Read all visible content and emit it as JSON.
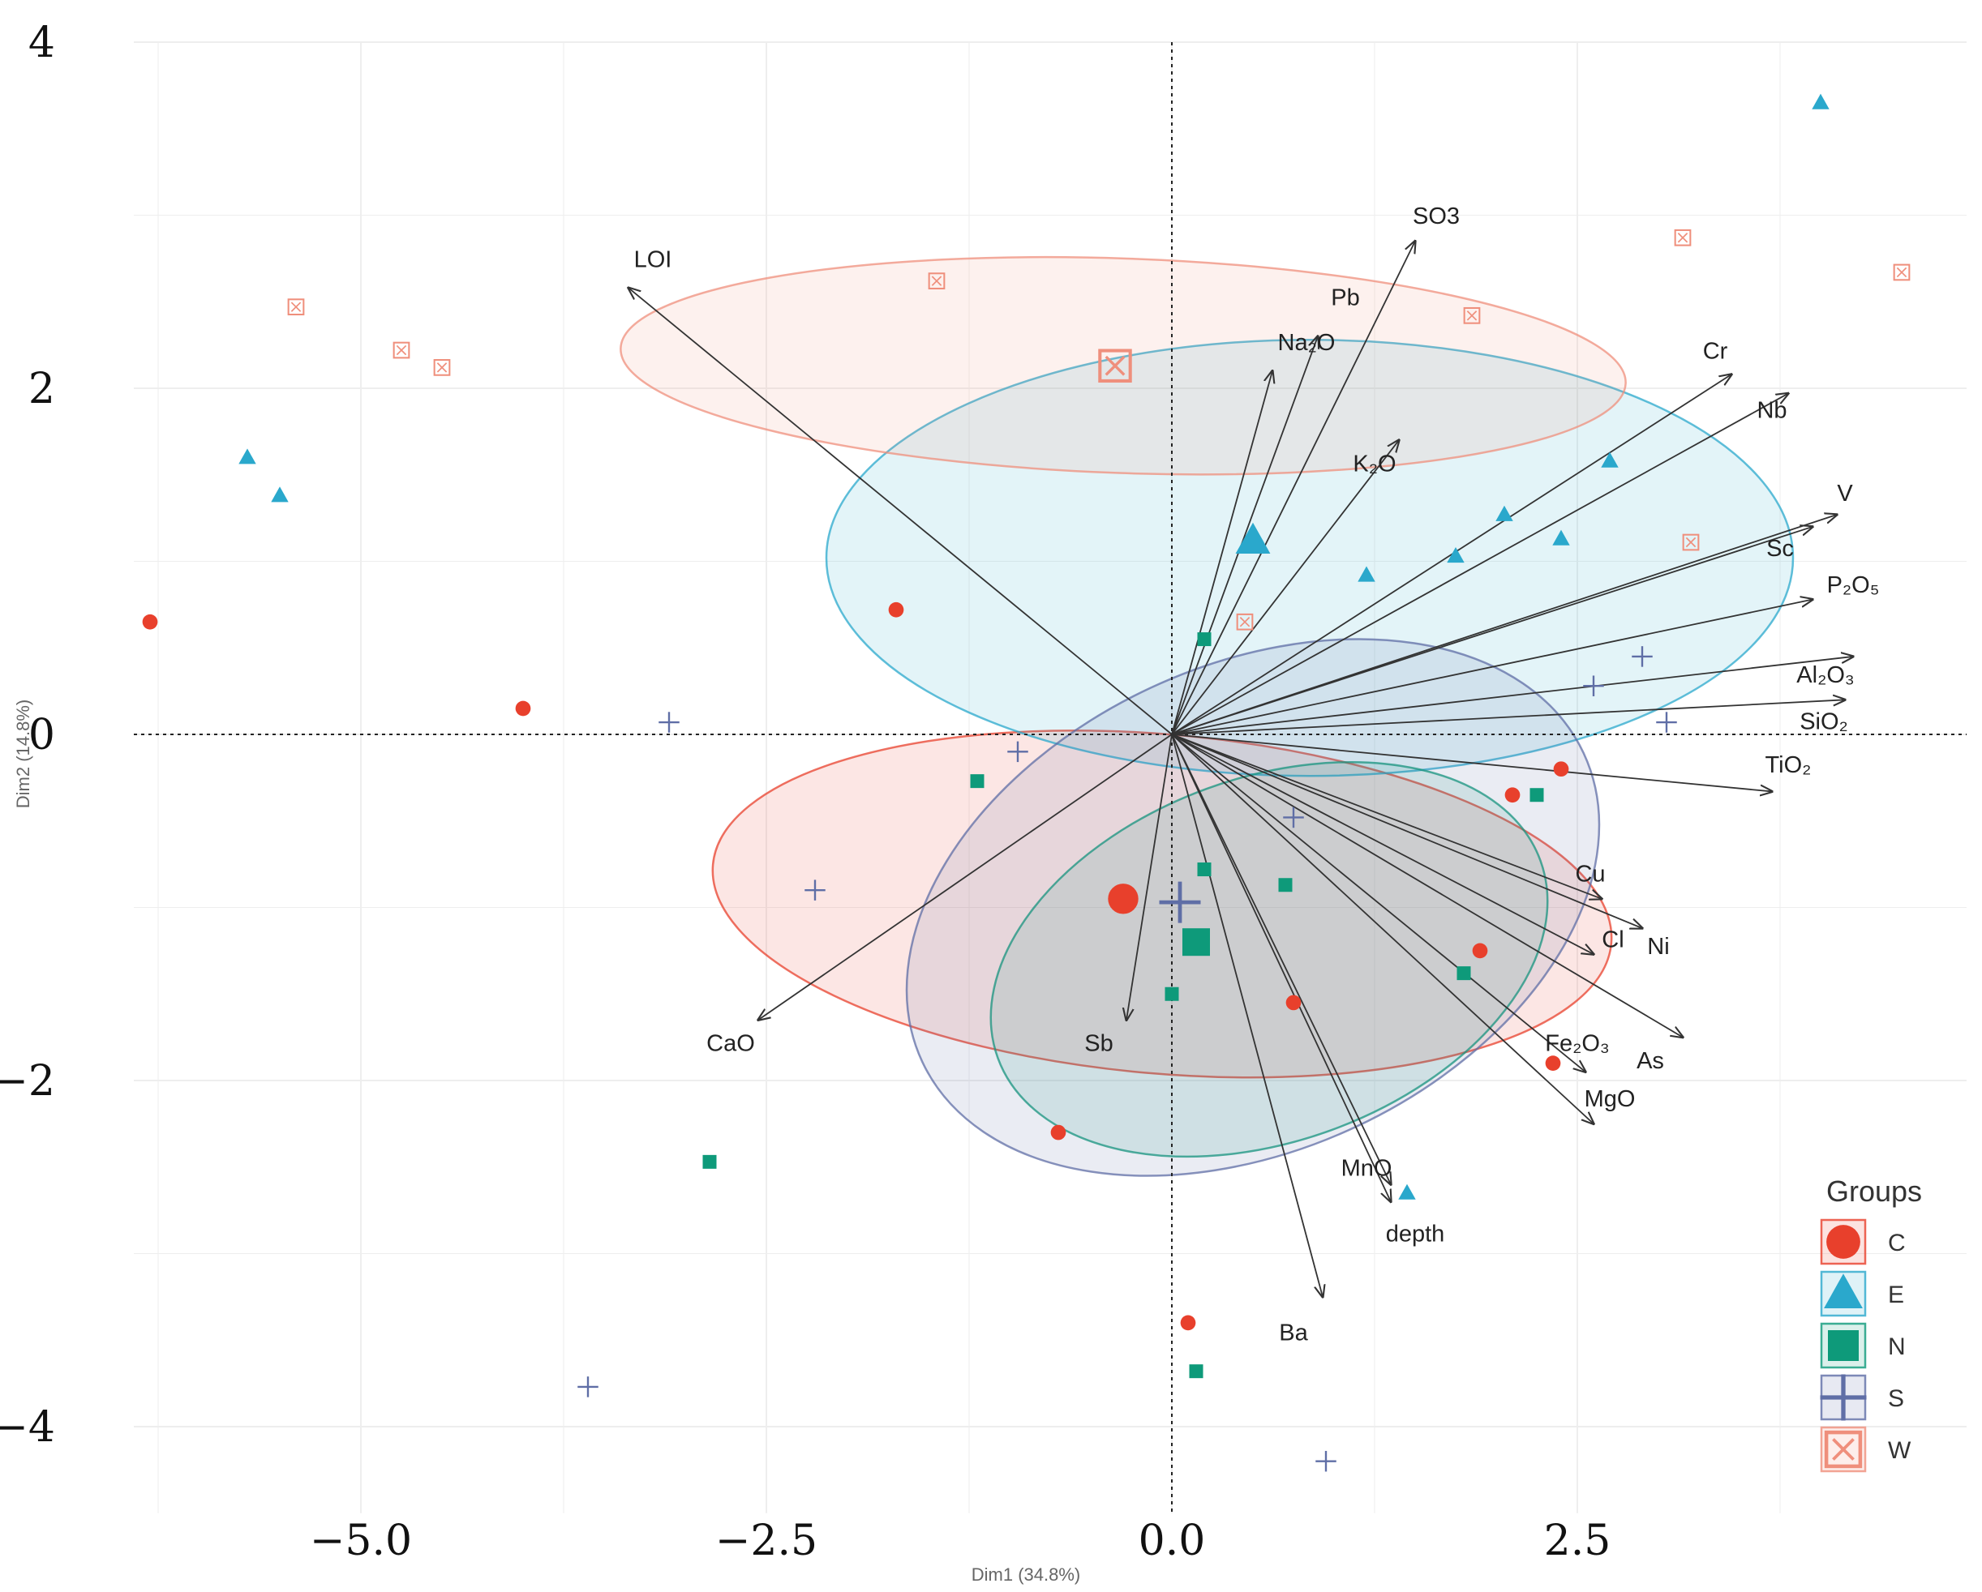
{
  "chart_data": {
    "type": "scatter",
    "subtype": "PCA biplot",
    "xlabel": "Dim1 (34.8%)",
    "ylabel": "Dim2 (14.8%)",
    "xlim": [
      -6.4,
      4.9
    ],
    "ylim": [
      -4.5,
      4.0
    ],
    "xticks": [
      -5.0,
      -2.5,
      0.0,
      2.5
    ],
    "xtick_labels": [
      "−5.0",
      "−2.5",
      "0.0",
      "2.5"
    ],
    "yticks": [
      4,
      2,
      0,
      -2,
      -4
    ],
    "ytick_labels": [
      "4",
      "2",
      "0",
      "−2",
      "−4"
    ],
    "grid": true,
    "colors": {
      "C": "#e8402c",
      "E": "#2aa8cc",
      "N": "#0e9a7a",
      "S": "#5f6ea6",
      "W": "#ef8f7c",
      "arrow": "#333333",
      "zero_line": "#222222",
      "grid": "#eeeeee"
    },
    "legend": {
      "title": "Groups",
      "position": "bottom-right",
      "entries": [
        {
          "key": "C",
          "label": "C",
          "shape": "circle"
        },
        {
          "key": "E",
          "label": "E",
          "shape": "triangle"
        },
        {
          "key": "N",
          "label": "N",
          "shape": "square"
        },
        {
          "key": "S",
          "label": "S",
          "shape": "plus"
        },
        {
          "key": "W",
          "label": "W",
          "shape": "boxx"
        }
      ]
    },
    "groups": [
      {
        "name": "C",
        "points": [
          [
            -6.3,
            0.65
          ],
          [
            -4.0,
            0.15
          ],
          [
            -1.7,
            0.72
          ],
          [
            2.4,
            -0.2
          ],
          [
            2.1,
            -0.35
          ],
          [
            1.9,
            -1.25
          ],
          [
            0.75,
            -1.55
          ],
          [
            2.35,
            -1.9
          ],
          [
            -0.7,
            -2.3
          ],
          [
            0.1,
            -3.4
          ]
        ],
        "mean": [
          -0.3,
          -0.95
        ],
        "ellipse": {
          "center": [
            -0.06,
            -0.98
          ],
          "rx": 2.78,
          "ry": 0.98,
          "angle": -5
        }
      },
      {
        "name": "E",
        "points": [
          [
            4.0,
            3.65
          ],
          [
            -5.7,
            1.6
          ],
          [
            -5.5,
            1.38
          ],
          [
            2.7,
            1.58
          ],
          [
            2.05,
            1.27
          ],
          [
            2.4,
            1.13
          ],
          [
            1.75,
            1.03
          ],
          [
            1.2,
            0.92
          ],
          [
            1.45,
            -2.65
          ]
        ],
        "mean": [
          0.5,
          1.12
        ],
        "ellipse": {
          "center": [
            0.85,
            1.02
          ],
          "rx": 2.98,
          "ry": 1.26,
          "angle": 0
        }
      },
      {
        "name": "N",
        "points": [
          [
            0.2,
            0.55
          ],
          [
            -1.2,
            -0.27
          ],
          [
            2.25,
            -0.35
          ],
          [
            0.2,
            -0.78
          ],
          [
            0.7,
            -0.87
          ],
          [
            0.0,
            -1.5
          ],
          [
            1.8,
            -1.38
          ],
          [
            -2.85,
            -2.47
          ],
          [
            0.15,
            -3.68
          ]
        ],
        "mean": [
          0.15,
          -1.2
        ],
        "ellipse": {
          "center": [
            0.6,
            -1.3
          ],
          "rx": 1.78,
          "ry": 1.05,
          "angle": 20
        }
      },
      {
        "name": "S",
        "points": [
          [
            -3.1,
            0.07
          ],
          [
            -0.95,
            -0.1
          ],
          [
            2.6,
            0.28
          ],
          [
            2.9,
            0.45
          ],
          [
            3.05,
            0.07
          ],
          [
            0.75,
            -0.48
          ],
          [
            -2.2,
            -0.9
          ],
          [
            -3.6,
            -3.77
          ],
          [
            0.95,
            -4.2
          ]
        ],
        "mean": [
          0.05,
          -0.97
        ],
        "ellipse": {
          "center": [
            0.5,
            -1.0
          ],
          "rx": 2.25,
          "ry": 1.4,
          "angle": 25
        }
      },
      {
        "name": "W",
        "points": [
          [
            -5.4,
            2.47
          ],
          [
            -4.75,
            2.22
          ],
          [
            -4.5,
            2.12
          ],
          [
            -1.45,
            2.62
          ],
          [
            1.85,
            2.42
          ],
          [
            3.15,
            2.87
          ],
          [
            4.5,
            2.67
          ],
          [
            3.2,
            1.11
          ],
          [
            0.45,
            0.65
          ]
        ],
        "mean": [
          -0.35,
          2.13
        ],
        "ellipse": {
          "center": [
            -0.3,
            2.13
          ],
          "rx": 3.1,
          "ry": 0.62,
          "angle": -2
        }
      }
    ],
    "variables": [
      {
        "name": "LOI",
        "end": [
          -3.35,
          2.58
        ],
        "label_at": [
          -3.2,
          2.7
        ]
      },
      {
        "name": "SO3",
        "end": [
          1.5,
          2.85
        ],
        "label_at": [
          1.63,
          2.95
        ]
      },
      {
        "name": "Pb",
        "end": [
          0.9,
          2.3
        ],
        "label_at": [
          1.07,
          2.48
        ]
      },
      {
        "name": "Na₂O",
        "end": [
          0.62,
          2.1
        ],
        "label_at": [
          0.83,
          2.22
        ]
      },
      {
        "name": "K₂O",
        "end": [
          1.4,
          1.7
        ],
        "label_at": [
          1.25,
          1.52
        ]
      },
      {
        "name": "Cr",
        "end": [
          3.45,
          2.08
        ],
        "label_at": [
          3.35,
          2.17
        ]
      },
      {
        "name": "Nb",
        "end": [
          3.8,
          1.97
        ],
        "label_at": [
          3.7,
          1.83
        ]
      },
      {
        "name": "V",
        "end": [
          4.1,
          1.27
        ],
        "label_at": [
          4.15,
          1.35
        ]
      },
      {
        "name": "Sc",
        "end": [
          3.95,
          1.2
        ],
        "label_at": [
          3.75,
          1.03
        ]
      },
      {
        "name": "P₂O₅",
        "end": [
          3.95,
          0.78
        ],
        "label_at": [
          4.2,
          0.82
        ]
      },
      {
        "name": "Al₂O₃",
        "end": [
          4.2,
          0.45
        ],
        "label_at": [
          4.03,
          0.3
        ]
      },
      {
        "name": "SiO₂",
        "end": [
          4.15,
          0.2
        ],
        "label_at": [
          4.02,
          0.03
        ]
      },
      {
        "name": "TiO₂",
        "end": [
          3.7,
          -0.33
        ],
        "label_at": [
          3.8,
          -0.22
        ]
      },
      {
        "name": "Cu",
        "end": [
          2.65,
          -0.95
        ],
        "label_at": [
          2.58,
          -0.85
        ]
      },
      {
        "name": "Ni",
        "end": [
          2.9,
          -1.12
        ],
        "label_at": [
          3.0,
          -1.27
        ]
      },
      {
        "name": "Cl",
        "end": [
          2.6,
          -1.27
        ],
        "label_at": [
          2.72,
          -1.23
        ]
      },
      {
        "name": "As",
        "end": [
          3.15,
          -1.75
        ],
        "label_at": [
          2.95,
          -1.93
        ]
      },
      {
        "name": "Fe₂O₃",
        "end": [
          2.55,
          -1.95
        ],
        "label_at": [
          2.5,
          -1.83
        ]
      },
      {
        "name": "MgO",
        "end": [
          2.6,
          -2.25
        ],
        "label_at": [
          2.7,
          -2.15
        ]
      },
      {
        "name": "MnO",
        "end": [
          1.35,
          -2.6
        ],
        "label_at": [
          1.2,
          -2.55
        ]
      },
      {
        "name": "depth",
        "end": [
          1.35,
          -2.7
        ],
        "label_at": [
          1.5,
          -2.93
        ]
      },
      {
        "name": "Ba",
        "end": [
          0.93,
          -3.25
        ],
        "label_at": [
          0.75,
          -3.5
        ]
      },
      {
        "name": "Sb",
        "end": [
          -0.28,
          -1.65
        ],
        "label_at": [
          -0.45,
          -1.83
        ]
      },
      {
        "name": "CaO",
        "end": [
          -2.55,
          -1.65
        ],
        "label_at": [
          -2.72,
          -1.83
        ]
      }
    ]
  }
}
